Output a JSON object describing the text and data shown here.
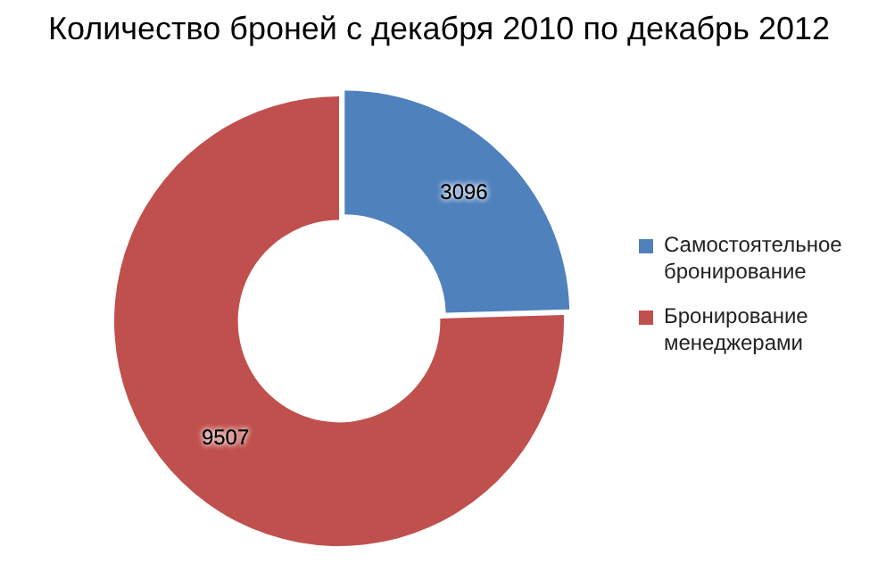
{
  "chart_data": {
    "type": "donut",
    "title": "Количество броней с декабря 2010 по декабрь 2012",
    "categories": [
      "Самостоятельное бронирование",
      "Бронирование менеджерами"
    ],
    "values": [
      3096,
      9507
    ],
    "colors": [
      "#4f81bd",
      "#c0504d"
    ],
    "data_labels": true,
    "legend": "right"
  }
}
